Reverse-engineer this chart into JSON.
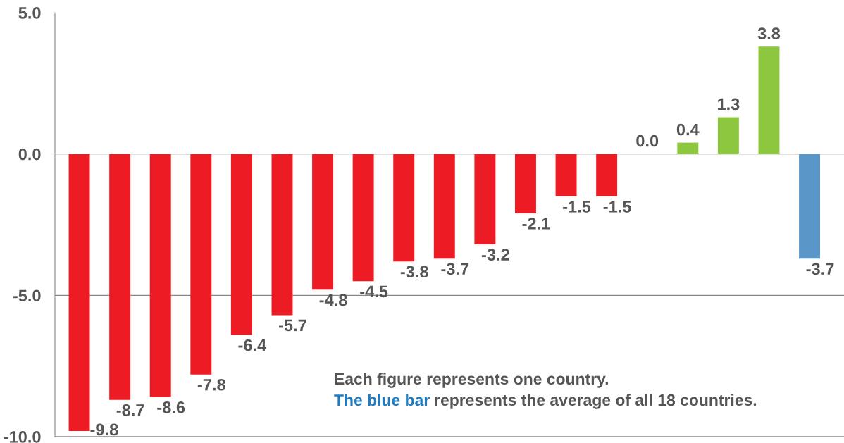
{
  "chart_data": {
    "type": "bar",
    "categories": [
      null,
      null,
      null,
      null,
      null,
      null,
      null,
      null,
      null,
      null,
      null,
      null,
      null,
      null,
      null,
      null,
      null,
      null,
      null
    ],
    "values": [
      -9.8,
      -8.7,
      -8.6,
      -7.8,
      -6.4,
      -5.7,
      -4.8,
      -4.5,
      -3.8,
      -3.7,
      -3.2,
      -2.1,
      -1.5,
      -1.5,
      0.0,
      0.4,
      1.3,
      3.8,
      -3.7
    ],
    "colors": [
      "#ed1c24",
      "#ed1c24",
      "#ed1c24",
      "#ed1c24",
      "#ed1c24",
      "#ed1c24",
      "#ed1c24",
      "#ed1c24",
      "#ed1c24",
      "#ed1c24",
      "#ed1c24",
      "#ed1c24",
      "#ed1c24",
      "#ed1c24",
      "#8dc63f",
      "#8dc63f",
      "#8dc63f",
      "#8dc63f",
      "#5b96c9"
    ],
    "value_labels": [
      "-9.8",
      "-8.7",
      "-8.6",
      "-7.8",
      "-6.4",
      "-5.7",
      "-4.8",
      "-4.5",
      "-3.8",
      "-3.7",
      "-3.2",
      "-2.1",
      "-1.5",
      "-1.5",
      "0.0",
      "0.4",
      "1.3",
      "3.8",
      "-3.7"
    ],
    "ylim": [
      -10,
      5
    ],
    "yticks": [
      {
        "value": 5,
        "label": "5.0"
      },
      {
        "value": 0,
        "label": "0.0"
      },
      {
        "value": -5,
        "label": "-5.0"
      },
      {
        "value": -10,
        "label": "-10.0"
      }
    ],
    "grid": "y",
    "annotations": [
      "Each figure represents one country.",
      "The blue bar",
      "represents the average of all 18 countries."
    ]
  }
}
